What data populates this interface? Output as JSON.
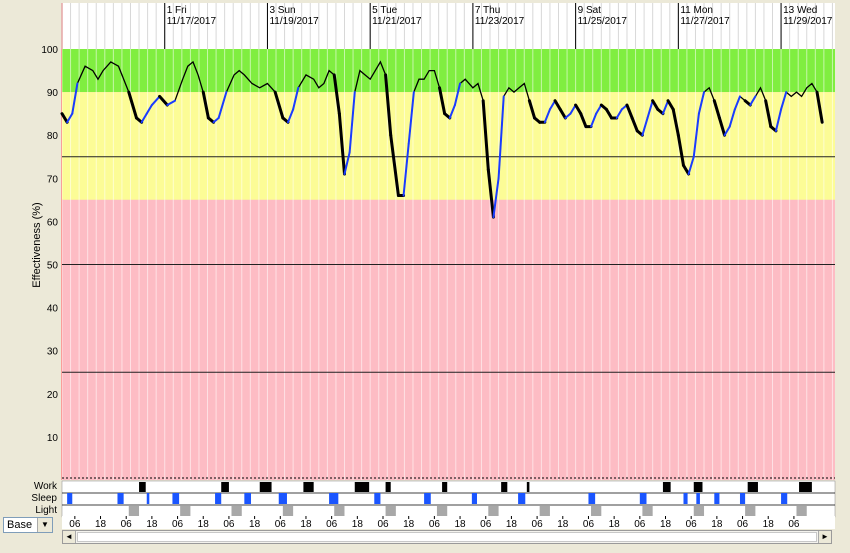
{
  "chart_data": {
    "type": "line",
    "ylabel": "Effectiveness (%)",
    "ylim": [
      0,
      100
    ],
    "yticks": [
      10,
      20,
      30,
      40,
      50,
      60,
      70,
      80,
      90,
      100
    ],
    "threshold_lines": [
      75,
      50,
      25
    ],
    "zones": [
      {
        "from": 90,
        "to": 100,
        "color": "#80ee40"
      },
      {
        "from": 65,
        "to": 90,
        "color": "#fcfc96"
      },
      {
        "from": 0,
        "to": 65,
        "color": "#fdbcc4"
      }
    ],
    "day_labels": [
      {
        "day": 1,
        "top": "1 Fri",
        "bottom": "11/17/2017"
      },
      {
        "day": 3,
        "top": "3 Sun",
        "bottom": "11/19/2017"
      },
      {
        "day": 5,
        "top": "5 Tue",
        "bottom": "11/21/2017"
      },
      {
        "day": 7,
        "top": "7 Thu",
        "bottom": "11/23/2017"
      },
      {
        "day": 9,
        "top": "9 Sat",
        "bottom": "11/25/2017"
      },
      {
        "day": 11,
        "top": "11 Mon",
        "bottom": "11/27/2017"
      },
      {
        "day": 13,
        "top": "13 Wed",
        "bottom": "11/29/2017"
      }
    ],
    "x_range_days": [
      -1,
      14.05
    ],
    "series": [
      {
        "color": "#000000",
        "points": [
          [
            -1.0,
            85
          ],
          [
            -0.9,
            83
          ],
          [
            -0.8,
            85
          ],
          [
            -0.7,
            92
          ],
          [
            -0.55,
            96
          ],
          [
            -0.4,
            95
          ],
          [
            -0.3,
            93
          ],
          [
            -0.2,
            95
          ],
          [
            -0.05,
            97
          ],
          [
            0.1,
            96
          ],
          [
            0.3,
            90
          ],
          [
            0.45,
            84
          ],
          [
            0.55,
            83
          ],
          [
            0.65,
            85
          ],
          [
            0.75,
            87
          ],
          [
            0.9,
            89
          ],
          [
            1.05,
            87
          ],
          [
            1.2,
            88
          ],
          [
            1.35,
            93
          ],
          [
            1.45,
            96
          ],
          [
            1.55,
            97
          ],
          [
            1.65,
            94
          ],
          [
            1.75,
            90
          ],
          [
            1.85,
            84
          ],
          [
            1.95,
            83
          ],
          [
            2.05,
            84
          ],
          [
            2.2,
            90
          ],
          [
            2.35,
            94
          ],
          [
            2.45,
            95
          ],
          [
            2.55,
            94
          ],
          [
            2.7,
            92
          ],
          [
            2.85,
            91
          ],
          [
            3.0,
            92
          ],
          [
            3.15,
            90
          ],
          [
            3.3,
            84
          ],
          [
            3.4,
            83
          ],
          [
            3.5,
            86
          ],
          [
            3.6,
            91
          ],
          [
            3.75,
            94
          ],
          [
            3.9,
            93
          ],
          [
            4.0,
            91
          ],
          [
            4.1,
            92
          ],
          [
            4.2,
            95
          ],
          [
            4.3,
            94
          ],
          [
            4.4,
            85
          ],
          [
            4.5,
            71
          ],
          [
            4.6,
            76
          ],
          [
            4.7,
            90
          ],
          [
            4.8,
            95
          ],
          [
            4.9,
            94
          ],
          [
            5.0,
            93
          ],
          [
            5.1,
            95
          ],
          [
            5.2,
            97
          ],
          [
            5.3,
            94
          ],
          [
            5.4,
            80
          ],
          [
            5.55,
            66
          ],
          [
            5.65,
            66
          ],
          [
            5.75,
            78
          ],
          [
            5.85,
            90
          ],
          [
            5.95,
            93
          ],
          [
            6.05,
            93
          ],
          [
            6.15,
            95
          ],
          [
            6.25,
            95
          ],
          [
            6.35,
            91
          ],
          [
            6.45,
            85
          ],
          [
            6.55,
            84
          ],
          [
            6.65,
            87
          ],
          [
            6.75,
            92
          ],
          [
            6.85,
            93
          ],
          [
            7.0,
            91
          ],
          [
            7.1,
            92
          ],
          [
            7.2,
            88
          ],
          [
            7.3,
            72
          ],
          [
            7.4,
            61
          ],
          [
            7.5,
            70
          ],
          [
            7.6,
            89
          ],
          [
            7.7,
            91
          ],
          [
            7.8,
            90
          ],
          [
            7.9,
            91
          ],
          [
            8.0,
            92
          ],
          [
            8.1,
            88
          ],
          [
            8.2,
            84
          ],
          [
            8.3,
            83
          ],
          [
            8.4,
            83
          ],
          [
            8.5,
            86
          ],
          [
            8.6,
            88
          ],
          [
            8.7,
            86
          ],
          [
            8.8,
            84
          ],
          [
            8.9,
            85
          ],
          [
            9.0,
            87
          ],
          [
            9.1,
            85
          ],
          [
            9.2,
            82
          ],
          [
            9.3,
            82
          ],
          [
            9.4,
            85
          ],
          [
            9.5,
            87
          ],
          [
            9.6,
            86
          ],
          [
            9.7,
            84
          ],
          [
            9.8,
            84
          ],
          [
            9.9,
            86
          ],
          [
            10.0,
            87
          ],
          [
            10.1,
            84
          ],
          [
            10.2,
            81
          ],
          [
            10.3,
            80
          ],
          [
            10.4,
            84
          ],
          [
            10.5,
            88
          ],
          [
            10.6,
            86
          ],
          [
            10.7,
            85
          ],
          [
            10.8,
            88
          ],
          [
            10.9,
            86
          ],
          [
            11.0,
            80
          ],
          [
            11.1,
            73
          ],
          [
            11.2,
            71
          ],
          [
            11.3,
            75
          ],
          [
            11.4,
            85
          ],
          [
            11.5,
            90
          ],
          [
            11.6,
            91
          ],
          [
            11.7,
            88
          ],
          [
            11.8,
            84
          ],
          [
            11.9,
            80
          ],
          [
            12.0,
            82
          ],
          [
            12.1,
            86
          ],
          [
            12.2,
            89
          ],
          [
            12.3,
            88
          ],
          [
            12.4,
            87
          ],
          [
            12.5,
            89
          ],
          [
            12.6,
            91
          ],
          [
            12.7,
            88
          ],
          [
            12.8,
            82
          ],
          [
            12.9,
            81
          ],
          [
            13.0,
            86
          ],
          [
            13.1,
            90
          ],
          [
            13.2,
            89
          ],
          [
            13.3,
            90
          ],
          [
            13.4,
            89
          ],
          [
            13.5,
            91
          ],
          [
            13.6,
            92
          ],
          [
            13.7,
            90
          ],
          [
            13.8,
            83
          ]
        ]
      }
    ]
  },
  "rows": {
    "work_label": "Work",
    "sleep_label": "Sleep",
    "light_label": "Light",
    "work_blocks": [
      [
        0.5,
        0.63
      ],
      [
        2.1,
        2.25
      ],
      [
        2.85,
        3.08
      ],
      [
        3.7,
        3.9
      ],
      [
        4.7,
        4.98
      ],
      [
        5.3,
        5.4
      ],
      [
        6.4,
        6.5
      ],
      [
        7.55,
        7.67
      ],
      [
        8.05,
        8.1
      ],
      [
        10.7,
        10.85
      ],
      [
        11.3,
        11.47
      ],
      [
        12.35,
        12.55
      ],
      [
        13.35,
        13.6
      ]
    ],
    "sleep_blocks": [
      [
        -0.9,
        -0.8
      ],
      [
        0.08,
        0.2
      ],
      [
        0.65,
        0.7
      ],
      [
        1.15,
        1.28
      ],
      [
        1.98,
        2.1
      ],
      [
        2.55,
        2.68
      ],
      [
        3.22,
        3.38
      ],
      [
        4.2,
        4.38
      ],
      [
        5.08,
        5.2
      ],
      [
        6.05,
        6.18
      ],
      [
        6.98,
        7.08
      ],
      [
        7.88,
        8.02
      ],
      [
        9.25,
        9.38
      ],
      [
        10.25,
        10.38
      ],
      [
        11.1,
        11.18
      ],
      [
        11.35,
        11.42
      ],
      [
        11.7,
        11.8
      ],
      [
        12.2,
        12.3
      ],
      [
        13.0,
        13.12
      ]
    ],
    "light_blocks": [
      [
        0.3,
        0.5
      ],
      [
        1.3,
        1.5
      ],
      [
        2.3,
        2.5
      ],
      [
        3.3,
        3.5
      ],
      [
        4.3,
        4.5
      ],
      [
        5.3,
        5.5
      ],
      [
        6.3,
        6.5
      ],
      [
        7.3,
        7.5
      ],
      [
        8.3,
        8.5
      ],
      [
        9.3,
        9.5
      ],
      [
        10.3,
        10.5
      ],
      [
        11.3,
        11.5
      ],
      [
        12.3,
        12.5
      ],
      [
        13.3,
        13.5
      ]
    ]
  },
  "hour_labels": [
    "06",
    "18",
    "06",
    "18",
    "06",
    "18",
    "06",
    "18",
    "06",
    "18",
    "06",
    "18",
    "06",
    "18",
    "06",
    "18",
    "06",
    "18",
    "06",
    "18",
    "06",
    "18",
    "06",
    "18",
    "06",
    "18",
    "06",
    "18",
    "06"
  ],
  "controls": {
    "base_select": "Base",
    "scroll_left": "◄",
    "scroll_right": "►",
    "dropdown_arrow": "▼"
  },
  "colors": {
    "curve": "#000000",
    "sleep_curve": "#1a3cff",
    "work_block": "#000000",
    "sleep_block": "#1a55ff",
    "light_block": "#a8a8a8"
  }
}
